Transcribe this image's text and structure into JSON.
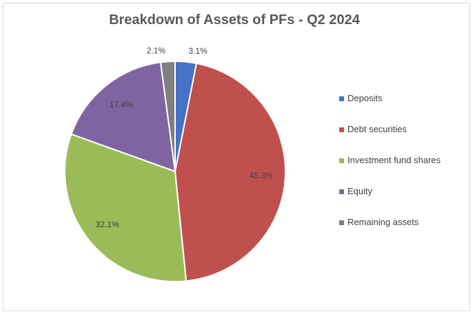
{
  "chart_data": {
    "type": "pie",
    "title": "Breakdown of Assets of PFs - Q2 2024",
    "categories": [
      "Deposits",
      "Debt securities",
      "Investment fund shares",
      "Equity",
      "Remaining assets"
    ],
    "values": [
      3.1,
      45.3,
      32.1,
      17.4,
      2.1
    ],
    "value_labels": [
      "3.1%",
      "45.3%",
      "32.1%",
      "17.4%",
      "2.1%"
    ],
    "colors": [
      "#4472C4",
      "#C0504D",
      "#9BBB59",
      "#8064A2",
      "#7F7F7F"
    ],
    "legend_position": "right",
    "start_angle_deg": 0,
    "direction": "clockwise"
  }
}
